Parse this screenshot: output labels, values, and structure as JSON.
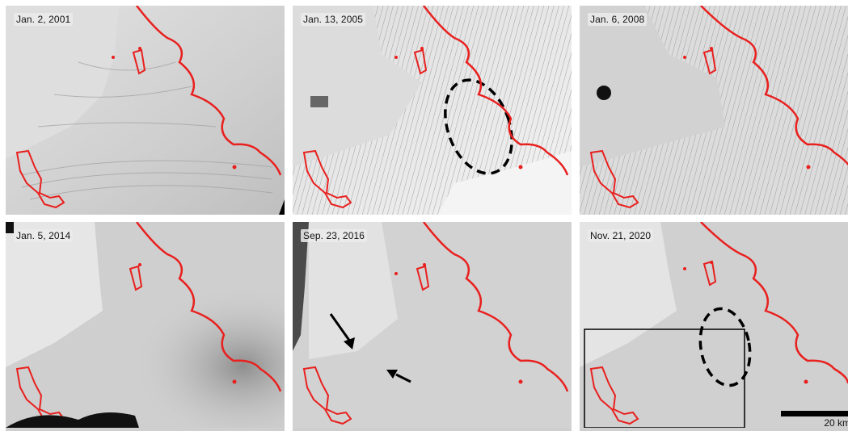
{
  "panels": [
    {
      "date": "Jan. 2, 2001"
    },
    {
      "date": "Jan. 13, 2005"
    },
    {
      "date": "Jan. 6, 2008"
    },
    {
      "date": "Jan. 5, 2014"
    },
    {
      "date": "Sep. 23, 2016"
    },
    {
      "date": "Nov. 21, 2020"
    }
  ],
  "scale_bar": {
    "label": "20 km"
  },
  "colors": {
    "grounding_line": "#e8201e",
    "ellipse": "#000000",
    "arrow": "#000000",
    "ice": "#d3d3d3"
  }
}
